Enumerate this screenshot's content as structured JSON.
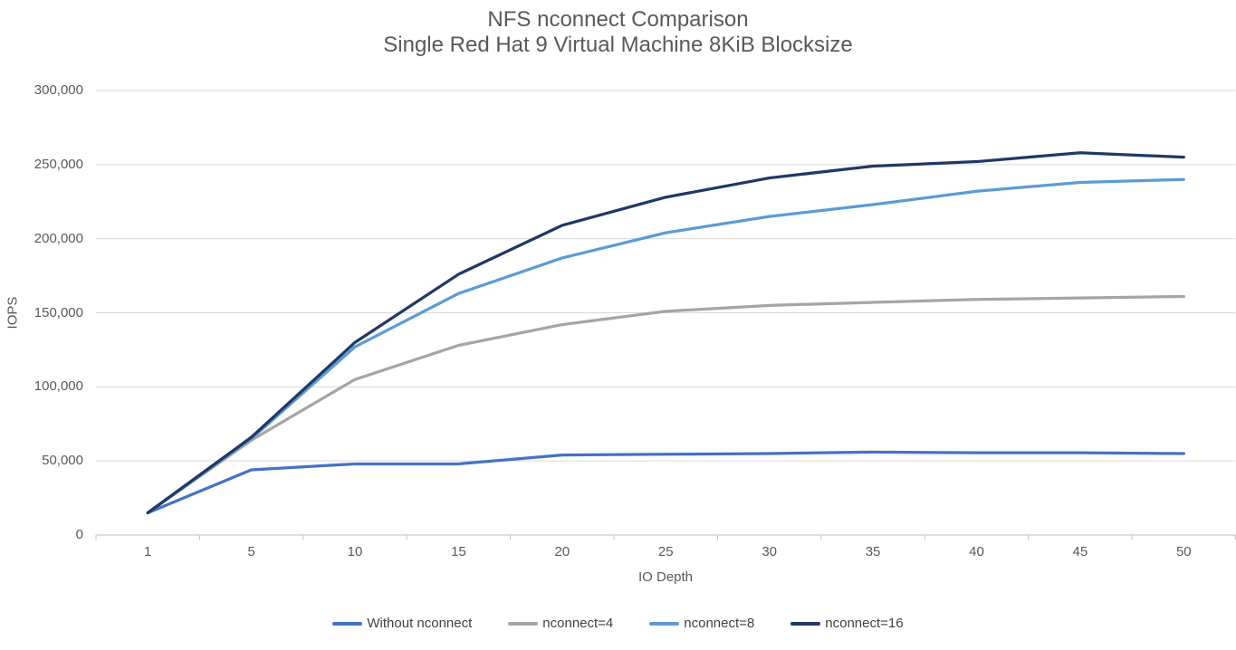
{
  "chart_data": {
    "type": "line",
    "title": "NFS nconnect Comparison",
    "subtitle": "Single Red Hat 9 Virtual Machine 8KiB Blocksize",
    "xlabel": "IO Depth",
    "ylabel": "IOPS",
    "categories": [
      "1",
      "5",
      "10",
      "15",
      "20",
      "25",
      "30",
      "35",
      "40",
      "45",
      "50"
    ],
    "y_tick_labels": [
      "0",
      "50,000",
      "100,000",
      "150,000",
      "200,000",
      "250,000",
      "300,000"
    ],
    "ylim": [
      0,
      300000
    ],
    "grid": "horizontal",
    "legend_position": "bottom",
    "series": [
      {
        "name": "Without nconnect",
        "color": "#4472C4",
        "values": [
          15000,
          44000,
          48000,
          48000,
          54000,
          54500,
          55000,
          56000,
          55500,
          55500,
          55000
        ]
      },
      {
        "name": "nconnect=4",
        "color": "#A5A5A5",
        "values": [
          15000,
          64000,
          105000,
          128000,
          142000,
          151000,
          155000,
          157000,
          159000,
          160000,
          161000
        ]
      },
      {
        "name": "nconnect=8",
        "color": "#5B9BD5",
        "values": [
          15000,
          65000,
          127000,
          163000,
          187000,
          204000,
          215000,
          223000,
          232000,
          238000,
          240000
        ]
      },
      {
        "name": "nconnect=16",
        "color": "#203864",
        "values": [
          15000,
          66000,
          130000,
          176000,
          209000,
          228000,
          241000,
          249000,
          252000,
          258000,
          255000
        ]
      }
    ],
    "axis_colors": {
      "gridline": "#D9D9D9",
      "axis_line": "#BFBFBF",
      "tick_mark": "#BFBFBF"
    }
  }
}
